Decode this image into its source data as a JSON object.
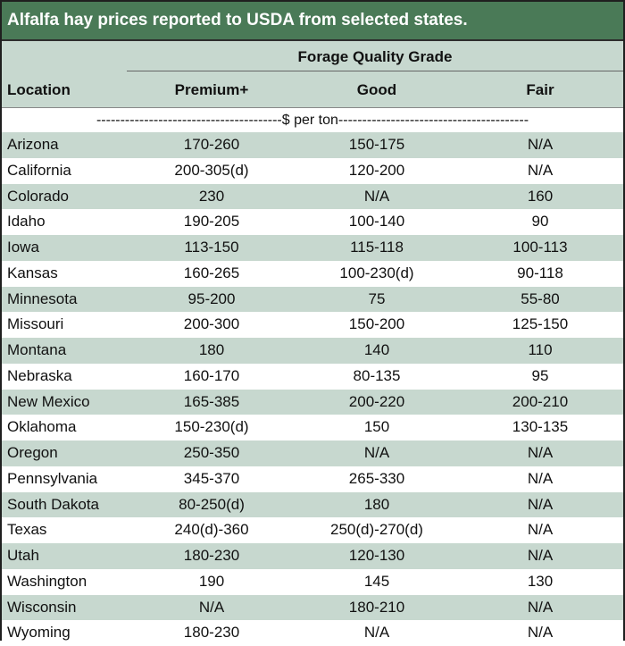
{
  "title": "Alfalfa hay prices reported to USDA from selected states.",
  "header": {
    "group": "Forage Quality Grade",
    "location": "Location",
    "premium": "Premium+",
    "good": "Good",
    "fair": "Fair"
  },
  "units": "---------------------------------------$ per ton----------------------------------------",
  "rows": [
    {
      "location": "Arizona",
      "premium": "170-260",
      "good": "150-175",
      "fair": "N/A"
    },
    {
      "location": "California",
      "premium": "200-305(d)",
      "good": "120-200",
      "fair": "N/A"
    },
    {
      "location": "Colorado",
      "premium": "230",
      "good": "N/A",
      "fair": "160"
    },
    {
      "location": "Idaho",
      "premium": "190-205",
      "good": "100-140",
      "fair": "90"
    },
    {
      "location": "Iowa",
      "premium": "113-150",
      "good": "115-118",
      "fair": "100-113"
    },
    {
      "location": "Kansas",
      "premium": "160-265",
      "good": "100-230(d)",
      "fair": "90-118"
    },
    {
      "location": "Minnesota",
      "premium": "95-200",
      "good": "75",
      "fair": "55-80"
    },
    {
      "location": "Missouri",
      "premium": "200-300",
      "good": "150-200",
      "fair": "125-150"
    },
    {
      "location": "Montana",
      "premium": "180",
      "good": "140",
      "fair": "110"
    },
    {
      "location": "Nebraska",
      "premium": "160-170",
      "good": "80-135",
      "fair": "95"
    },
    {
      "location": "New Mexico",
      "premium": "165-385",
      "good": "200-220",
      "fair": "200-210"
    },
    {
      "location": "Oklahoma",
      "premium": "150-230(d)",
      "good": "150",
      "fair": "130-135"
    },
    {
      "location": "Oregon",
      "premium": "250-350",
      "good": "N/A",
      "fair": "N/A"
    },
    {
      "location": "Pennsylvania",
      "premium": "345-370",
      "good": "265-330",
      "fair": "N/A"
    },
    {
      "location": "South Dakota",
      "premium": "80-250(d)",
      "good": "180",
      "fair": "N/A"
    },
    {
      "location": "Texas",
      "premium": "240(d)-360",
      "good": "250(d)-270(d)",
      "fair": "N/A"
    },
    {
      "location": "Utah",
      "premium": "180-230",
      "good": "120-130",
      "fair": "N/A"
    },
    {
      "location": "Washington",
      "premium": "190",
      "good": "145",
      "fair": "130"
    },
    {
      "location": "Wisconsin",
      "premium": "N/A",
      "good": "180-210",
      "fair": "N/A"
    },
    {
      "location": "Wyoming",
      "premium": "180-230",
      "good": "N/A",
      "fair": "N/A"
    }
  ]
}
